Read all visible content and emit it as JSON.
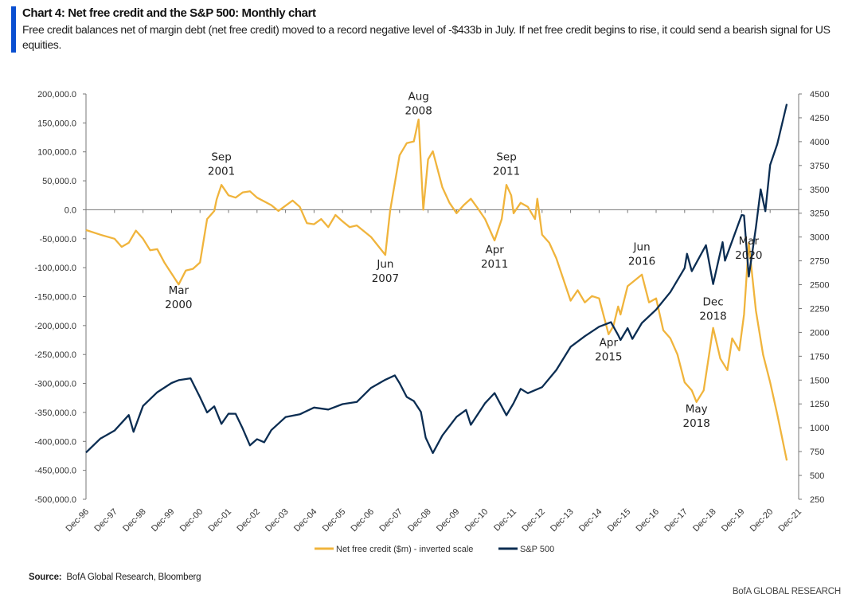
{
  "header": {
    "title": "Chart 4: Net free credit and the S&P 500: Monthly chart",
    "subtitle": "Free credit balances net of margin debt (net free credit) moved to a record negative level of -$433b in July. If net free credit begins to rise, it could send a bearish signal for US equities.",
    "accent_color": "#0a4fd1"
  },
  "footer": {
    "source_label": "Source:",
    "source_text": "BofA Global Research, Bloomberg",
    "brand": "BofA GLOBAL RESEARCH"
  },
  "chart_data": {
    "type": "line",
    "title": "",
    "xlabel": "",
    "ylabel": "",
    "y2label": "",
    "grid": false,
    "legend_position": "bottom",
    "xlim": [
      "1996-12",
      "2021-12"
    ],
    "ylim": [
      -500000,
      200000
    ],
    "y2lim": [
      250,
      4500
    ],
    "x_ticks": [
      "Dec-96",
      "Dec-97",
      "Dec-98",
      "Dec-99",
      "Dec-00",
      "Dec-01",
      "Dec-02",
      "Dec-03",
      "Dec-04",
      "Dec-05",
      "Dec-06",
      "Dec-07",
      "Dec-08",
      "Dec-09",
      "Dec-10",
      "Dec-11",
      "Dec-12",
      "Dec-13",
      "Dec-14",
      "Dec-15",
      "Dec-16",
      "Dec-17",
      "Dec-18",
      "Dec-19",
      "Dec-20",
      "Dec-21"
    ],
    "y_ticks": [
      "200,000.0",
      "150,000.0",
      "100,000.0",
      "50,000.0",
      "0.0",
      "-50,000.0",
      "-100,000.0",
      "-150,000.0",
      "-200,000.0",
      "-250,000.0",
      "-300,000.0",
      "-350,000.0",
      "-400,000.0",
      "-450,000.0",
      "-500,000.0"
    ],
    "y_tick_values": [
      200000,
      150000,
      100000,
      50000,
      0,
      -50000,
      -100000,
      -150000,
      -200000,
      -250000,
      -300000,
      -350000,
      -400000,
      -450000,
      -500000
    ],
    "y2_ticks": [
      "4500",
      "4250",
      "4000",
      "3750",
      "3500",
      "3250",
      "3000",
      "2750",
      "2500",
      "2250",
      "2000",
      "1750",
      "1500",
      "1250",
      "1000",
      "750",
      "500",
      "250"
    ],
    "y2_tick_values": [
      4500,
      4250,
      4000,
      3750,
      3500,
      3250,
      3000,
      2750,
      2500,
      2250,
      2000,
      1750,
      1500,
      1250,
      1000,
      750,
      500,
      250
    ],
    "series": [
      {
        "name": "Net free credit ($m) - inverted scale",
        "axis": "left",
        "color": "#f0b43c",
        "x": [
          "1996-12",
          "1997-06",
          "1997-12",
          "1998-03",
          "1998-06",
          "1998-09",
          "1998-12",
          "1999-03",
          "1999-06",
          "1999-09",
          "2000-03",
          "2000-06",
          "2000-09",
          "2000-12",
          "2001-03",
          "2001-06",
          "2001-07",
          "2001-09",
          "2001-12",
          "2002-03",
          "2002-06",
          "2002-09",
          "2002-12",
          "2003-06",
          "2003-09",
          "2004-03",
          "2004-06",
          "2004-09",
          "2004-12",
          "2005-03",
          "2005-06",
          "2005-09",
          "2005-12",
          "2006-03",
          "2006-06",
          "2006-12",
          "2007-06",
          "2007-08",
          "2007-12",
          "2008-03",
          "2008-06",
          "2008-08",
          "2008-10",
          "2008-12",
          "2009-02",
          "2009-06",
          "2009-09",
          "2009-12",
          "2010-03",
          "2010-06",
          "2010-09",
          "2010-12",
          "2011-04",
          "2011-07",
          "2011-09",
          "2011-11",
          "2011-12",
          "2012-03",
          "2012-06",
          "2012-09",
          "2012-10",
          "2012-12",
          "2013-03",
          "2013-06",
          "2013-12",
          "2014-03",
          "2014-06",
          "2014-09",
          "2014-12",
          "2015-04",
          "2015-06",
          "2015-08",
          "2015-09",
          "2015-12",
          "2016-06",
          "2016-09",
          "2016-12",
          "2017-03",
          "2017-06",
          "2017-09",
          "2017-12",
          "2018-03",
          "2018-05",
          "2018-08",
          "2018-12",
          "2019-03",
          "2019-06",
          "2019-08",
          "2019-11",
          "2020-01",
          "2020-03",
          "2020-06",
          "2020-09",
          "2020-12",
          "2021-03",
          "2021-07"
        ],
        "values": [
          -35000,
          -43000,
          -50000,
          -64000,
          -57000,
          -36000,
          -50000,
          -70000,
          -68000,
          -91000,
          -129000,
          -105000,
          -102000,
          -91000,
          -16000,
          -2000,
          18000,
          43000,
          25000,
          21000,
          30000,
          32000,
          21000,
          8000,
          -2000,
          16000,
          5000,
          -23000,
          -25000,
          -16000,
          -30000,
          -9000,
          -20000,
          -30000,
          -27000,
          -47000,
          -78000,
          -2000,
          94000,
          115000,
          118000,
          156000,
          0,
          87000,
          101000,
          39000,
          12000,
          -6000,
          8000,
          19000,
          2000,
          -16000,
          -53000,
          -16000,
          43000,
          25000,
          -6000,
          12000,
          5000,
          -16000,
          19000,
          -43000,
          -57000,
          -84000,
          -157000,
          -139000,
          -160000,
          -149000,
          -153000,
          -215000,
          -201000,
          -167000,
          -181000,
          -132000,
          -112000,
          -160000,
          -153000,
          -208000,
          -222000,
          -250000,
          -298000,
          -312000,
          -332000,
          -312000,
          -204000,
          -257000,
          -277000,
          -222000,
          -243000,
          -181000,
          -57000,
          -174000,
          -250000,
          -298000,
          -353000,
          -433000
        ]
      },
      {
        "name": "S&P 500",
        "axis": "right",
        "color": "#0b2d52",
        "x": [
          "1996-12",
          "1997-06",
          "1997-12",
          "1998-06",
          "1998-08",
          "1998-12",
          "1999-06",
          "1999-12",
          "2000-03",
          "2000-08",
          "2000-12",
          "2001-03",
          "2001-06",
          "2001-09",
          "2001-12",
          "2002-03",
          "2002-06",
          "2002-09",
          "2002-12",
          "2003-03",
          "2003-06",
          "2003-12",
          "2004-06",
          "2004-12",
          "2005-06",
          "2005-12",
          "2006-06",
          "2006-12",
          "2007-06",
          "2007-10",
          "2007-12",
          "2008-03",
          "2008-06",
          "2008-09",
          "2008-11",
          "2009-02",
          "2009-06",
          "2009-12",
          "2010-04",
          "2010-06",
          "2010-12",
          "2011-04",
          "2011-09",
          "2011-12",
          "2012-03",
          "2012-06",
          "2012-12",
          "2013-06",
          "2013-12",
          "2014-06",
          "2014-12",
          "2015-05",
          "2015-08",
          "2015-09",
          "2015-12",
          "2016-02",
          "2016-06",
          "2016-12",
          "2017-06",
          "2017-12",
          "2018-01",
          "2018-03",
          "2018-09",
          "2018-12",
          "2019-04",
          "2019-05",
          "2019-12",
          "2020-01",
          "2020-03",
          "2020-06",
          "2020-08",
          "2020-10",
          "2020-12",
          "2021-03",
          "2021-07"
        ],
        "values": [
          740,
          885,
          970,
          1133,
          957,
          1229,
          1372,
          1469,
          1499,
          1518,
          1320,
          1160,
          1224,
          1041,
          1148,
          1147,
          990,
          815,
          880,
          848,
          975,
          1112,
          1141,
          1212,
          1191,
          1248,
          1270,
          1418,
          1503,
          1549,
          1468,
          1323,
          1280,
          1166,
          896,
          735,
          919,
          1115,
          1187,
          1031,
          1258,
          1364,
          1131,
          1258,
          1408,
          1362,
          1426,
          1606,
          1848,
          1960,
          2059,
          2107,
          1972,
          1920,
          2044,
          1932,
          2099,
          2239,
          2423,
          2674,
          2824,
          2641,
          2914,
          2507,
          2946,
          2752,
          3231,
          3226,
          2585,
          3100,
          3500,
          3270,
          3756,
          3973,
          4395
        ]
      }
    ],
    "annotations": [
      {
        "text": [
          "Mar",
          "2000"
        ],
        "x": "2000-03",
        "y": -145000,
        "axis": "left"
      },
      {
        "text": [
          "Sep",
          "2001"
        ],
        "x": "2001-09",
        "y": 85000,
        "axis": "left"
      },
      {
        "text": [
          "Jun",
          "2007"
        ],
        "x": "2007-06",
        "y": -100000,
        "axis": "left"
      },
      {
        "text": [
          "Aug",
          "2008"
        ],
        "x": "2008-08",
        "y": 190000,
        "axis": "left"
      },
      {
        "text": [
          "Apr",
          "2011"
        ],
        "x": "2011-04",
        "y": -75000,
        "axis": "left"
      },
      {
        "text": [
          "Sep",
          "2011"
        ],
        "x": "2011-09",
        "y": 85000,
        "axis": "left"
      },
      {
        "text": [
          "Apr",
          "2015"
        ],
        "x": "2015-04",
        "y": -235000,
        "axis": "left"
      },
      {
        "text": [
          "Jun",
          "2016"
        ],
        "x": "2016-06",
        "y": -70000,
        "axis": "left"
      },
      {
        "text": [
          "May",
          "2018"
        ],
        "x": "2018-05",
        "y": -350000,
        "axis": "left"
      },
      {
        "text": [
          "Dec",
          "2018"
        ],
        "x": "2018-12",
        "y": -165000,
        "axis": "left"
      },
      {
        "text": [
          "Mar",
          "2020"
        ],
        "x": "2020-03",
        "y": -60000,
        "axis": "left"
      }
    ]
  }
}
